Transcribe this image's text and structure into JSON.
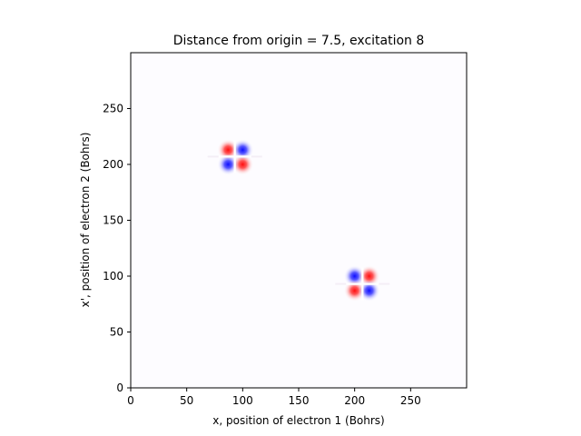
{
  "chart_data": {
    "type": "heatmap",
    "title": "Distance from origin = 7.5, excitation 8",
    "xlabel": "x, position of electron 1 (Bohrs)",
    "ylabel": "x', position of electron 2 (Bohrs)",
    "xlim": [
      0,
      300
    ],
    "ylim": [
      0,
      300
    ],
    "x_ticks": [
      0,
      50,
      100,
      150,
      200,
      250
    ],
    "y_ticks": [
      0,
      50,
      100,
      150,
      200,
      250
    ],
    "colormap": "bwr",
    "color_low": "#0000ff",
    "color_mid": "#ffffff",
    "color_high": "#ff0000",
    "grid": false,
    "lobe_clusters": [
      {
        "center": [
          93,
          207
        ],
        "lobes": [
          {
            "x": 87,
            "y": 213,
            "sign": "positive"
          },
          {
            "x": 100,
            "y": 213,
            "sign": "negative"
          },
          {
            "x": 87,
            "y": 200,
            "sign": "negative"
          },
          {
            "x": 100,
            "y": 200,
            "sign": "positive"
          }
        ]
      },
      {
        "center": [
          207,
          93
        ],
        "lobes": [
          {
            "x": 200,
            "y": 100,
            "sign": "negative"
          },
          {
            "x": 213,
            "y": 100,
            "sign": "positive"
          },
          {
            "x": 200,
            "y": 87,
            "sign": "positive"
          },
          {
            "x": 213,
            "y": 87,
            "sign": "negative"
          }
        ]
      }
    ]
  }
}
